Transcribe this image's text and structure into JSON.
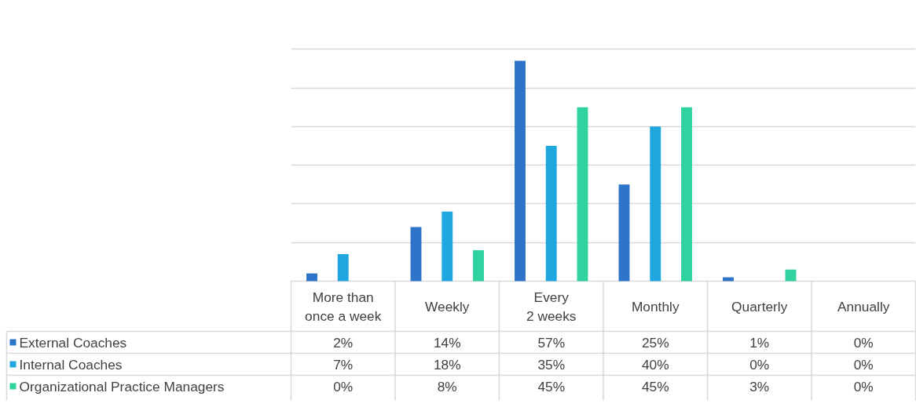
{
  "chart_data": {
    "type": "bar",
    "categories": [
      "More than once a week",
      "Weekly",
      "Every 2 weeks",
      "Monthly",
      "Quarterly",
      "Annually"
    ],
    "series": [
      {
        "name": "External Coaches",
        "color": "#2e75c9",
        "values": [
          2,
          14,
          57,
          25,
          1,
          0
        ],
        "value_labels": [
          "2%",
          "14%",
          "57%",
          "25%",
          "1%",
          "0%"
        ]
      },
      {
        "name": "Internal Coaches",
        "color": "#1fa6de",
        "values": [
          7,
          18,
          35,
          40,
          0,
          0
        ],
        "value_labels": [
          "7%",
          "18%",
          "35%",
          "40%",
          "0%",
          "0%"
        ]
      },
      {
        "name": "Organizational Practice Managers",
        "color": "#2ed3a0",
        "values": [
          0,
          8,
          45,
          45,
          3,
          0
        ],
        "value_labels": [
          "0%",
          "8%",
          "45%",
          "45%",
          "3%",
          "0%"
        ]
      }
    ],
    "grid": "y",
    "legend": "bottom",
    "tick_labels": false
  }
}
